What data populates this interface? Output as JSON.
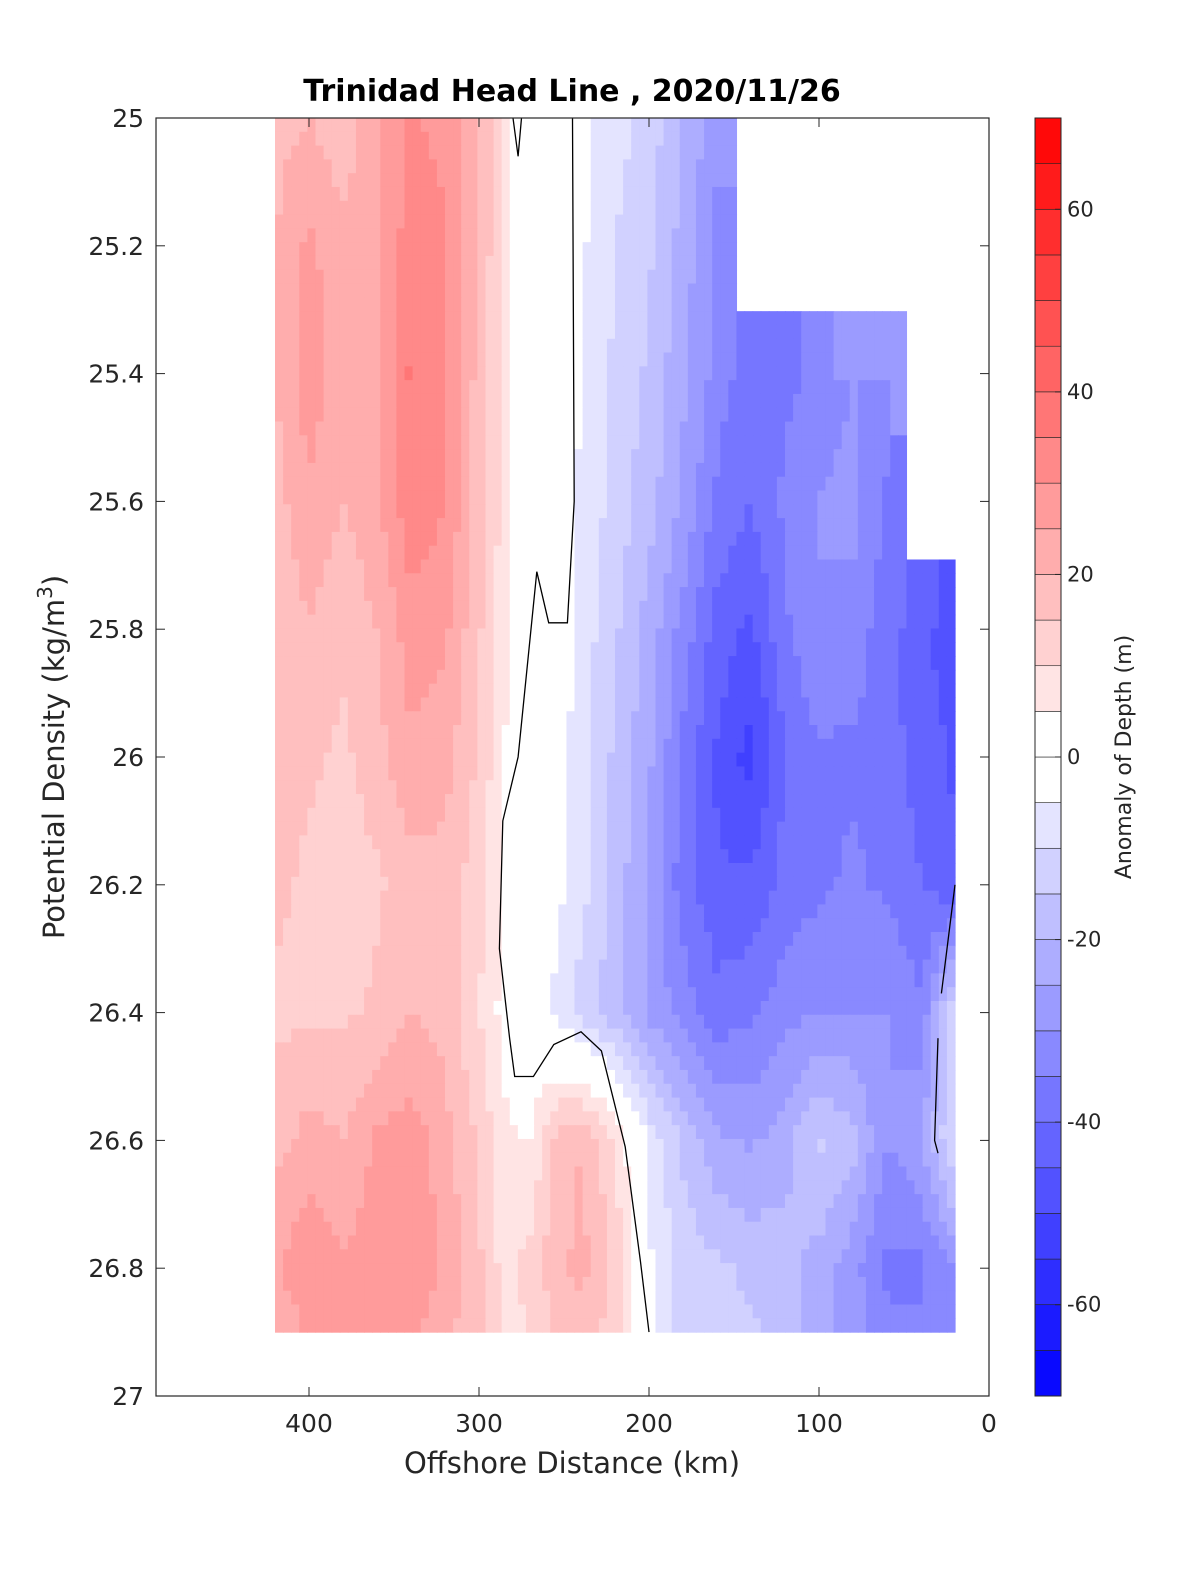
{
  "chart_data": {
    "type": "heatmap",
    "title": "Trinidad Head Line , 2020/11/26",
    "xlabel": "Offshore Distance (km)",
    "ylabel": "Potential Density (kg/m",
    "ylabel_superscript": "3",
    "ylabel_suffix": ")",
    "x_reversed": true,
    "y_reversed": true,
    "xlim": [
      490,
      0
    ],
    "ylim": [
      25,
      27
    ],
    "x_ticks": [
      400,
      300,
      200,
      100,
      0
    ],
    "x_tick_labels": [
      "400",
      "300",
      "200",
      "100",
      "0"
    ],
    "y_ticks": [
      25,
      25.2,
      25.4,
      25.6,
      25.8,
      26,
      26.2,
      26.4,
      26.6,
      26.8,
      27
    ],
    "y_tick_labels": [
      "25",
      "25.2",
      "25.4",
      "25.6",
      "25.8",
      "26",
      "26.2",
      "26.4",
      "26.6",
      "26.8",
      "27"
    ],
    "grid": false,
    "colorbar": {
      "label": "Anomaly of Depth (m)",
      "range": [
        -70,
        70
      ],
      "step": 5,
      "ticks": [
        60,
        40,
        20,
        0,
        -20,
        -40,
        -60
      ],
      "tick_labels": [
        "60",
        "40",
        "20",
        "0",
        "-20",
        "-40",
        "-60"
      ],
      "colormap": "blue-white-red",
      "color_negative": "#0000ff",
      "color_positive": "#ff0000"
    },
    "z_unit": "m",
    "distance_km": [
      420,
      400,
      380,
      360,
      340,
      320,
      300,
      285,
      270,
      255,
      240,
      220,
      200,
      180,
      160,
      140,
      120,
      100,
      80,
      60,
      40,
      20
    ],
    "density": [
      25.0,
      25.2,
      25.4,
      25.6,
      25.8,
      26.0,
      26.2,
      26.4,
      26.6,
      26.8,
      26.9
    ],
    "anomaly_m": [
      [
        18,
        20,
        16,
        24,
        31,
        28,
        20,
        8,
        -2,
        4,
        -3,
        -8,
        -12,
        -20,
        -28,
        null,
        null,
        null,
        null,
        null,
        null,
        null
      ],
      [
        20,
        26,
        22,
        24,
        33,
        31,
        20,
        8,
        -2,
        5,
        -4,
        -10,
        -14,
        -22,
        -32,
        null,
        null,
        null,
        null,
        null,
        null,
        null
      ],
      [
        20,
        28,
        22,
        24,
        36,
        30,
        18,
        8,
        -2,
        2,
        -5,
        -11,
        -16,
        -24,
        -32,
        -40,
        -36,
        -34,
        -30,
        -30,
        null,
        null
      ],
      [
        18,
        24,
        20,
        24,
        34,
        30,
        18,
        8,
        -2,
        0,
        -6,
        -12,
        -18,
        -26,
        -36,
        -40,
        -34,
        -30,
        -28,
        -36,
        null,
        null
      ],
      [
        16,
        20,
        16,
        20,
        28,
        26,
        16,
        6,
        -1,
        0,
        -7,
        -14,
        -22,
        -32,
        -42,
        -46,
        -36,
        -30,
        -32,
        -38,
        -44,
        -48
      ],
      [
        18,
        16,
        14,
        18,
        24,
        22,
        14,
        5,
        -1,
        -2,
        -8,
        -16,
        -24,
        -36,
        -46,
        -52,
        -40,
        -36,
        -36,
        -38,
        -42,
        -46
      ],
      [
        16,
        14,
        12,
        14,
        18,
        18,
        12,
        4,
        -1,
        -3,
        -8,
        -17,
        -26,
        -38,
        -44,
        -44,
        -38,
        -36,
        -34,
        -36,
        -40,
        -44
      ],
      [
        14,
        14,
        14,
        16,
        20,
        18,
        10,
        3,
        -1,
        -6,
        -12,
        -18,
        -26,
        -32,
        -38,
        -36,
        -32,
        -30,
        -30,
        -30,
        -34,
        -10
      ],
      [
        18,
        22,
        20,
        26,
        28,
        22,
        14,
        6,
        5,
        16,
        20,
        10,
        -6,
        -16,
        -24,
        -26,
        -22,
        -14,
        -18,
        -30,
        -26,
        -8
      ],
      [
        24,
        30,
        26,
        28,
        30,
        24,
        16,
        8,
        12,
        18,
        22,
        14,
        -4,
        -12,
        -14,
        -16,
        -18,
        -22,
        -28,
        -36,
        -36,
        -30
      ],
      [
        20,
        26,
        28,
        30,
        26,
        22,
        16,
        8,
        10,
        16,
        18,
        12,
        -4,
        -12,
        -14,
        -14,
        -18,
        -22,
        -28,
        -34,
        -34,
        -30
      ]
    ],
    "zero_contour": [
      {
        "segment": "offshore",
        "points": [
          [
            280,
            25.0
          ],
          [
            277,
            25.06
          ],
          [
            275,
            25.0
          ]
        ]
      },
      {
        "segment": "main",
        "points": [
          [
            245,
            25.0
          ],
          [
            244,
            25.6
          ],
          [
            248,
            25.79
          ],
          [
            259,
            25.79
          ],
          [
            266,
            25.71
          ],
          [
            277,
            26.0
          ],
          [
            286,
            26.1
          ],
          [
            288,
            26.3
          ],
          [
            282,
            26.44
          ],
          [
            279,
            26.5
          ],
          [
            268,
            26.5
          ],
          [
            256,
            26.45
          ],
          [
            240,
            26.43
          ],
          [
            228,
            26.46
          ],
          [
            214,
            26.61
          ],
          [
            205,
            26.79
          ],
          [
            200,
            26.9
          ]
        ]
      },
      {
        "segment": "nearshore-upper",
        "points": [
          [
            20,
            26.2
          ],
          [
            28,
            26.37
          ]
        ]
      },
      {
        "segment": "nearshore-lower",
        "points": [
          [
            30,
            26.44
          ],
          [
            32,
            26.6
          ],
          [
            30,
            26.62
          ]
        ]
      }
    ]
  }
}
